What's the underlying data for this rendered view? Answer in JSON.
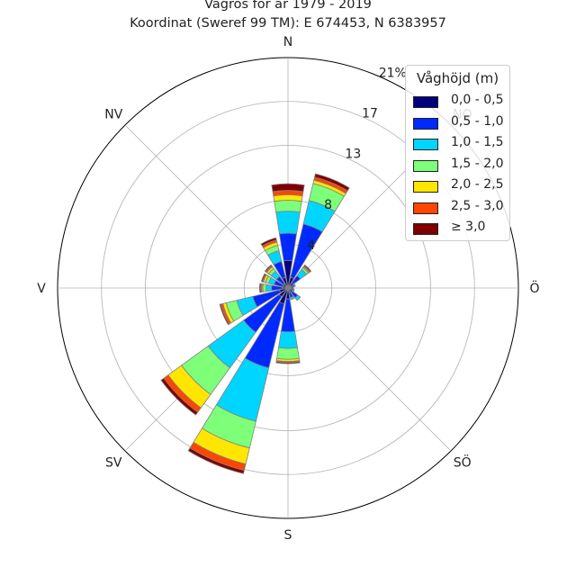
{
  "title_line1": "Vågros för år 1979 - 2019",
  "title_line2": "Koordinat (Sweref 99 TM): E 674453, N 6383957",
  "chart_data": {
    "type": "rose",
    "radial_unit": "%",
    "rmax": 21,
    "radial_ticks": [
      4,
      8,
      13,
      17,
      21
    ],
    "radial_tick_labels": [
      "4",
      "8",
      "13",
      "17",
      "21%"
    ],
    "direction_labels": [
      "N",
      "NO",
      "Ö",
      "SÖ",
      "S",
      "SV",
      "V",
      "NV"
    ],
    "legend_title": "Våghöjd (m)",
    "bins": [
      {
        "label": "0,0 - 0,5",
        "color": "#00007f"
      },
      {
        "label": "0,5 - 1,0",
        "color": "#0029ff"
      },
      {
        "label": "1,0 - 1,5",
        "color": "#00d5ff"
      },
      {
        "label": "1,5 - 2,0",
        "color": "#7dff7a"
      },
      {
        "label": "2,0 - 2,5",
        "color": "#ffe600"
      },
      {
        "label": "2,5 - 3,0",
        "color": "#ff4600"
      },
      {
        "label": "≥ 3,0",
        "color": "#7f0000"
      }
    ],
    "sector_directions_deg": [
      0,
      22.5,
      45,
      67.5,
      90,
      112.5,
      135,
      157.5,
      180,
      202.5,
      225,
      247.5,
      270,
      292.5,
      315,
      337.5
    ],
    "sector_values": [
      [
        2.5,
        2.5,
        2.0,
        1.0,
        0.5,
        0.4,
        0.6
      ],
      [
        1.0,
        5.0,
        2.2,
        1.6,
        0.3,
        0.3,
        0.3
      ],
      [
        0.6,
        0.8,
        0.7,
        0.2,
        0.1,
        0.1,
        0.1
      ],
      [
        0.3,
        0.3,
        0.1,
        0.0,
        0.0,
        0.0,
        0.0
      ],
      [
        0.3,
        0.2,
        0.0,
        0.0,
        0.0,
        0.0,
        0.0
      ],
      [
        0.3,
        0.2,
        0.1,
        0.0,
        0.0,
        0.0,
        0.0
      ],
      [
        0.5,
        0.6,
        0.3,
        0.0,
        0.0,
        0.0,
        0.0
      ],
      [
        0.4,
        0.5,
        0.2,
        0.0,
        0.0,
        0.0,
        0.0
      ],
      [
        1.0,
        3.0,
        1.5,
        1.0,
        0.2,
        0.1,
        0.1
      ],
      [
        1.5,
        6.0,
        5.0,
        2.5,
        1.5,
        0.6,
        0.3
      ],
      [
        1.0,
        4.0,
        4.0,
        3.0,
        1.5,
        0.5,
        0.3
      ],
      [
        0.8,
        2.5,
        1.5,
        1.0,
        0.3,
        0.2,
        0.1
      ],
      [
        0.5,
        1.0,
        0.5,
        0.3,
        0.1,
        0.1,
        0.1
      ],
      [
        0.5,
        0.8,
        0.5,
        0.3,
        0.2,
        0.1,
        0.1
      ],
      [
        0.5,
        0.8,
        0.6,
        0.3,
        0.2,
        0.1,
        0.1
      ],
      [
        1.0,
        1.5,
        1.0,
        0.5,
        0.3,
        0.2,
        0.2
      ]
    ],
    "grid": true,
    "legend_position": "upper-right"
  }
}
